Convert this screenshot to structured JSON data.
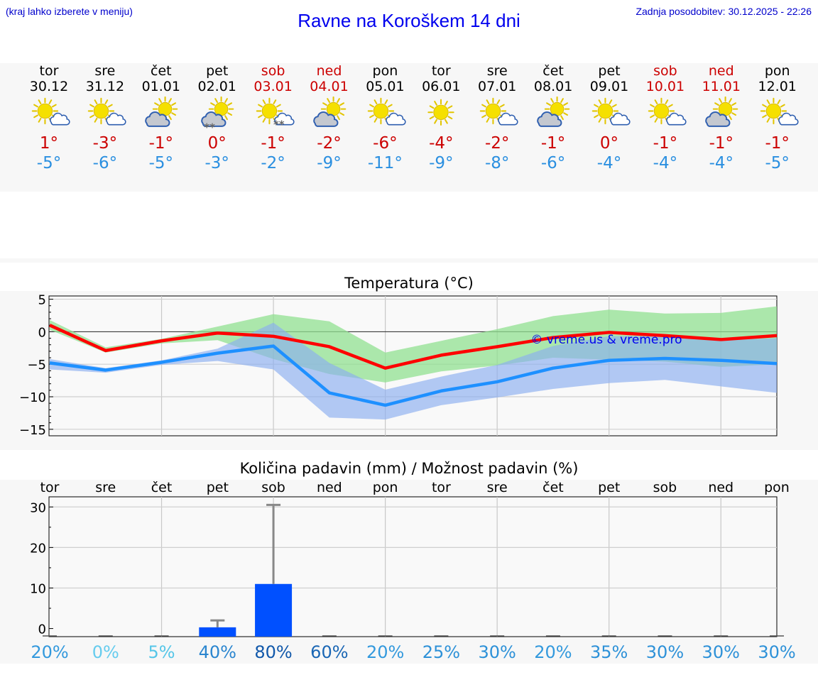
{
  "header": {
    "hint": "(kraj lahko izberete v meniju)",
    "title": "Ravne na Koroškem 14 dni",
    "updated": "Zadnja posodobitev: 30.12.2025 - 22:26"
  },
  "days": [
    {
      "weekday": "tor",
      "date": "30.12",
      "weekend": false,
      "icon": "sun-cloud-icon",
      "max": "1°",
      "min": "-5°"
    },
    {
      "weekday": "sre",
      "date": "31.12",
      "weekend": false,
      "icon": "sun-cloud-icon",
      "max": "-3°",
      "min": "-6°"
    },
    {
      "weekday": "čet",
      "date": "01.01",
      "weekend": false,
      "icon": "cloud-sun-icon",
      "max": "-1°",
      "min": "-5°"
    },
    {
      "weekday": "pet",
      "date": "02.01",
      "weekend": false,
      "icon": "cloud-sun-snow-icon",
      "max": "0°",
      "min": "-3°"
    },
    {
      "weekday": "sob",
      "date": "03.01",
      "weekend": true,
      "icon": "sun-cloud-snow-icon",
      "max": "-1°",
      "min": "-2°"
    },
    {
      "weekday": "ned",
      "date": "04.01",
      "weekend": true,
      "icon": "cloud-sun-icon",
      "max": "-2°",
      "min": "-9°"
    },
    {
      "weekday": "pon",
      "date": "05.01",
      "weekend": false,
      "icon": "sun-cloud-icon",
      "max": "-6°",
      "min": "-11°"
    },
    {
      "weekday": "tor",
      "date": "06.01",
      "weekend": false,
      "icon": "sun-icon",
      "max": "-4°",
      "min": "-9°"
    },
    {
      "weekday": "sre",
      "date": "07.01",
      "weekend": false,
      "icon": "sun-cloud-icon",
      "max": "-2°",
      "min": "-8°"
    },
    {
      "weekday": "čet",
      "date": "08.01",
      "weekend": false,
      "icon": "cloud-sun-icon",
      "max": "-1°",
      "min": "-6°"
    },
    {
      "weekday": "pet",
      "date": "09.01",
      "weekend": false,
      "icon": "sun-cloud-icon",
      "max": "0°",
      "min": "-4°"
    },
    {
      "weekday": "sob",
      "date": "10.01",
      "weekend": true,
      "icon": "sun-cloud-icon",
      "max": "-1°",
      "min": "-4°"
    },
    {
      "weekday": "ned",
      "date": "11.01",
      "weekend": true,
      "icon": "cloud-sun-icon",
      "max": "-1°",
      "min": "-4°"
    },
    {
      "weekday": "pon",
      "date": "12.01",
      "weekend": false,
      "icon": "sun-cloud-icon",
      "max": "-1°",
      "min": "-5°"
    }
  ],
  "colors": {
    "max_line": "#ff0000",
    "min_line": "#1e90ff",
    "max_band": "#90e090",
    "min_band": "#8aaef0",
    "overlap_band": "#6fb6a0",
    "bar": "#0050ff",
    "weekend": "#cc0000"
  },
  "chart_data": [
    {
      "type": "line",
      "title": "Temperatura (°C)",
      "watermark": "© vreme.us & vreme.pro",
      "ylim": [
        -16,
        5.5
      ],
      "yticks": [
        5,
        0,
        -5,
        -10,
        -15
      ],
      "ytick_labels": [
        "5",
        "0",
        "−5",
        "−10",
        "−15"
      ],
      "series": [
        {
          "name": "max",
          "values": [
            1.0,
            -2.9,
            -1.4,
            -0.2,
            -0.7,
            -2.3,
            -5.6,
            -3.6,
            -2.3,
            -0.9,
            -0.1,
            -0.6,
            -1.2,
            -0.6
          ]
        },
        {
          "name": "min",
          "values": [
            -4.8,
            -5.9,
            -4.7,
            -3.3,
            -2.2,
            -9.4,
            -11.3,
            -9.1,
            -7.7,
            -5.6,
            -4.4,
            -4.1,
            -4.4,
            -4.9
          ]
        }
      ],
      "bands": [
        {
          "name": "max-range",
          "upper": [
            1.8,
            -2.4,
            -1.1,
            0.8,
            2.7,
            1.6,
            -3.2,
            -1.4,
            0.4,
            2.4,
            3.4,
            2.8,
            2.9,
            3.9
          ],
          "lower": [
            0.3,
            -3.2,
            -1.8,
            -1.3,
            -4.2,
            -6.5,
            -7.8,
            -6.1,
            -5.2,
            -4.0,
            -4.3,
            -4.6,
            -5.4,
            -5.0
          ]
        },
        {
          "name": "min-range",
          "upper": [
            -4.2,
            -5.6,
            -4.4,
            -2.6,
            1.4,
            -4.8,
            -8.9,
            -6.9,
            -5.1,
            -2.2,
            -0.7,
            -0.7,
            -1.3,
            -1.0
          ],
          "lower": [
            -5.8,
            -6.3,
            -5.1,
            -4.5,
            -5.8,
            -13.2,
            -13.5,
            -11.3,
            -10.1,
            -8.8,
            -7.9,
            -7.4,
            -8.4,
            -9.4
          ]
        }
      ]
    },
    {
      "type": "bar",
      "title": "Količina padavin (mm) / Možnost padavin (%)",
      "categories": [
        "tor",
        "sre",
        "čet",
        "pet",
        "sob",
        "ned",
        "pon",
        "tor",
        "sre",
        "čet",
        "pet",
        "sob",
        "ned",
        "pon"
      ],
      "values": [
        0,
        0,
        0,
        0.3,
        11,
        0,
        0,
        0,
        0,
        0,
        0,
        0,
        0,
        0
      ],
      "error_max": [
        0,
        0,
        0,
        2,
        30.5,
        0,
        0,
        0,
        0,
        0,
        0,
        0,
        0,
        0
      ],
      "ylim": [
        -2,
        32.5
      ],
      "yticks": [
        30,
        20,
        10,
        0
      ],
      "ytick_labels": [
        "30",
        "20",
        "10",
        "0"
      ],
      "probability": [
        "20%",
        "0%",
        "5%",
        "40%",
        "80%",
        "60%",
        "20%",
        "25%",
        "30%",
        "20%",
        "35%",
        "30%",
        "30%",
        "30%"
      ],
      "probability_colors": [
        "#3399dd",
        "#66ccee",
        "#55c6e8",
        "#2a85cf",
        "#1158aa",
        "#1a66b4",
        "#3399dd",
        "#2d91d8",
        "#2d91d8",
        "#3399dd",
        "#2d91d8",
        "#2d91d8",
        "#2d91d8",
        "#2d91d8"
      ]
    }
  ]
}
